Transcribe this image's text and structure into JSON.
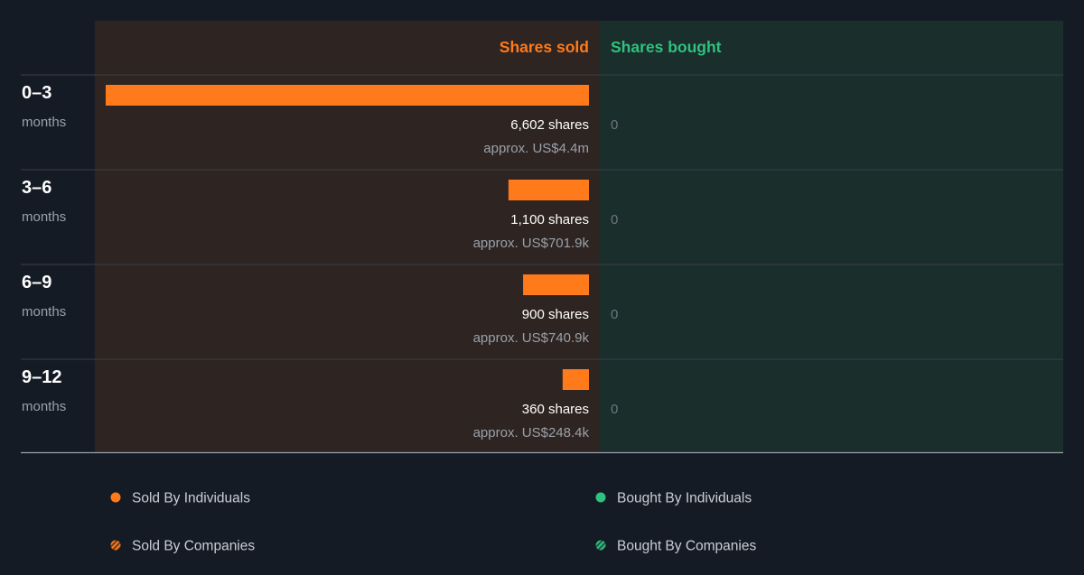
{
  "chart_data": {
    "type": "bar",
    "orientation": "horizontal",
    "columns": {
      "sold": "Shares sold",
      "bought": "Shares bought"
    },
    "categories": [
      {
        "top": "0–3",
        "bottom": "months"
      },
      {
        "top": "3–6",
        "bottom": "months"
      },
      {
        "top": "6–9",
        "bottom": "months"
      },
      {
        "top": "9–12",
        "bottom": "months"
      }
    ],
    "series": [
      {
        "name": "Sold By Individuals",
        "values": [
          6602,
          1100,
          900,
          360
        ],
        "labels": [
          "6,602 shares",
          "1,100 shares",
          "900 shares",
          "360 shares"
        ],
        "approx": [
          "approx. US$4.4m",
          "approx. US$701.9k",
          "approx. US$740.9k",
          "approx. US$248.4k"
        ]
      },
      {
        "name": "Bought By Individuals",
        "values": [
          0,
          0,
          0,
          0
        ],
        "labels": [
          "0",
          "0",
          "0",
          "0"
        ]
      }
    ],
    "legend": {
      "placement": "bottom",
      "items": [
        {
          "label": "Sold By Individuals",
          "color": "#ff7a1a",
          "style": "solid"
        },
        {
          "label": "Bought By Individuals",
          "color": "#2ec27e",
          "style": "solid"
        },
        {
          "label": "Sold By Companies",
          "color": "#ff7a1a",
          "style": "striped"
        },
        {
          "label": "Bought By Companies",
          "color": "#2ec27e",
          "style": "striped"
        }
      ]
    },
    "colors": {
      "sold": "#ff7a1a",
      "bought": "#2ec27e",
      "sold_panel": "#2e2421",
      "bought_panel": "#1a2e2c",
      "background": "#151b24"
    }
  }
}
